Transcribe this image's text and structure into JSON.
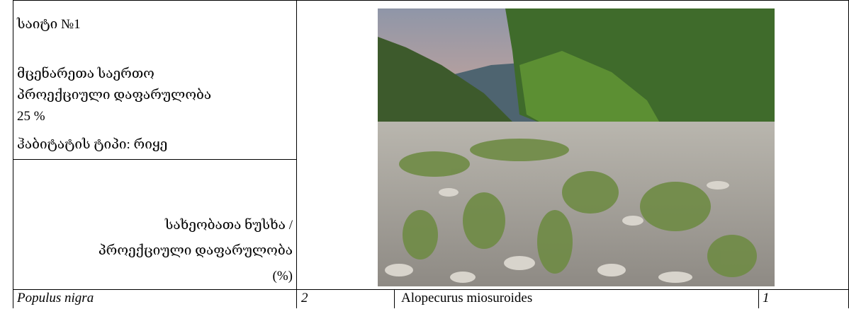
{
  "site_cell": {
    "lines": [
      "საიტი №1",
      "მცენარეთა საერთო",
      "პროექციული დაფარულობა",
      "25 %",
      "ჰაბიტატის ტიპი: რიყე"
    ]
  },
  "list_header": {
    "lines": [
      "სახეობათა ნუსხა /",
      "პროექციული დაფარულობა",
      "(%)"
    ]
  },
  "table": {
    "rows": [
      [
        "Populus nigra",
        "2",
        "Alopecurus miosuroides",
        "1"
      ]
    ]
  }
}
